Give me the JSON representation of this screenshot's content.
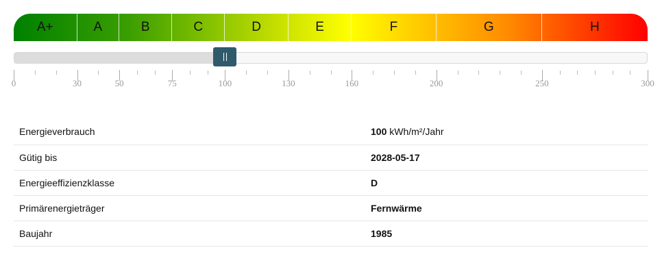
{
  "scale": {
    "min": 0,
    "max": 300,
    "value": 100,
    "classes": [
      {
        "label": "A+",
        "from": 0,
        "to": 30
      },
      {
        "label": "A",
        "from": 30,
        "to": 50
      },
      {
        "label": "B",
        "from": 50,
        "to": 75
      },
      {
        "label": "C",
        "from": 75,
        "to": 100
      },
      {
        "label": "D",
        "from": 100,
        "to": 130
      },
      {
        "label": "E",
        "from": 130,
        "to": 160
      },
      {
        "label": "F",
        "from": 160,
        "to": 200
      },
      {
        "label": "G",
        "from": 200,
        "to": 250
      },
      {
        "label": "H",
        "from": 250,
        "to": 300
      }
    ],
    "tick_labels": [
      "0",
      "30",
      "50",
      "75",
      "100",
      "130",
      "160",
      "200",
      "250",
      "300"
    ],
    "colors": {
      "start": "#008000",
      "middle": "#ffff00",
      "end": "#ff0000",
      "handle": "#2f5a6b"
    }
  },
  "details": [
    {
      "label": "Energieverbrauch",
      "value_bold": "100",
      "value_rest": " kWh/m²/Jahr"
    },
    {
      "label": "Gütig bis",
      "value_bold": "2028-05-17",
      "value_rest": ""
    },
    {
      "label": "Energieeffizienzklasse",
      "value_bold": "D",
      "value_rest": ""
    },
    {
      "label": "Primärenergieträger",
      "value_bold": "Fernwärme",
      "value_rest": ""
    },
    {
      "label": "Baujahr",
      "value_bold": "1985",
      "value_rest": ""
    }
  ]
}
